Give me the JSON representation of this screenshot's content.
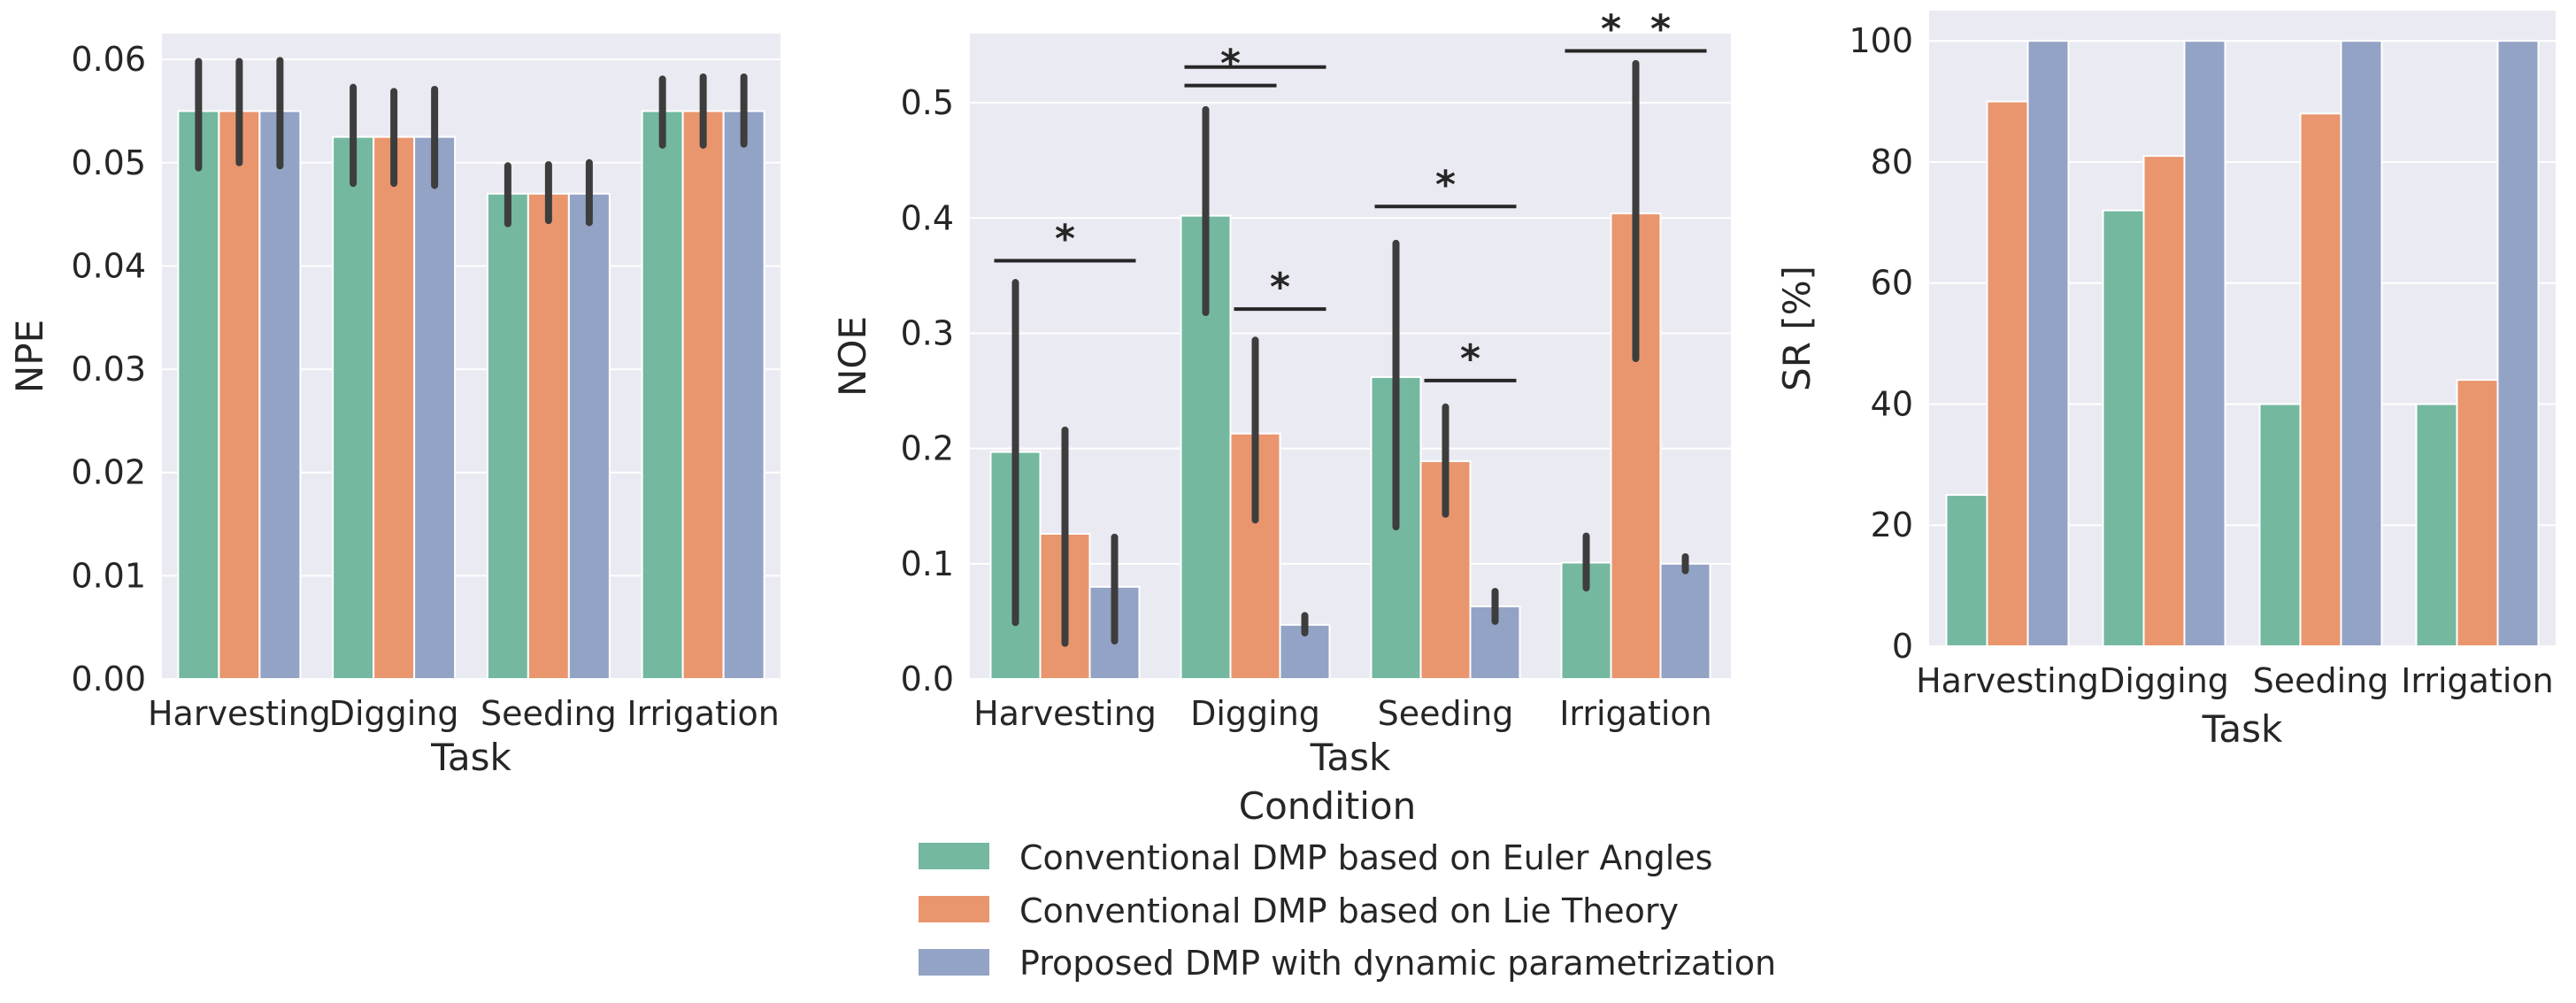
{
  "colors": {
    "plot_bg": "#eaeaf2",
    "grid": "#ffffff",
    "errorbar": "#3d3d3d",
    "series": [
      "#74b8a0",
      "#e9966f",
      "#93a3c5"
    ]
  },
  "legend": {
    "title": "Condition",
    "entries": [
      "Conventional DMP based on Euler Angles",
      "Conventional DMP based on Lie Theory",
      "Proposed DMP with dynamic parametrization"
    ]
  },
  "chart_data": [
    {
      "type": "bar",
      "title": "",
      "xlabel": "Task",
      "ylabel": "NPE",
      "categories": [
        "Harvesting",
        "Digging",
        "Seeding",
        "Irrigation"
      ],
      "ylim": [
        0,
        0.0625
      ],
      "yticks": [
        0,
        0.01,
        0.02,
        0.03,
        0.04,
        0.05,
        0.06
      ],
      "ytick_labels": [
        "0.00",
        "0.01",
        "0.02",
        "0.03",
        "0.04",
        "0.05",
        "0.06"
      ],
      "grid": true,
      "series": [
        {
          "name": "Conventional DMP based on Euler Angles",
          "values": [
            0.055,
            0.0525,
            0.047,
            0.055
          ],
          "err_low": [
            0.0495,
            0.048,
            0.0441,
            0.0517
          ],
          "err_high": [
            0.0598,
            0.0573,
            0.0497,
            0.0581
          ]
        },
        {
          "name": "Conventional DMP based on Lie Theory",
          "values": [
            0.055,
            0.0525,
            0.047,
            0.055
          ],
          "err_low": [
            0.05,
            0.048,
            0.0444,
            0.0517
          ],
          "err_high": [
            0.0598,
            0.0569,
            0.0498,
            0.0583
          ]
        },
        {
          "name": "Proposed DMP with dynamic parametrization",
          "values": [
            0.055,
            0.0525,
            0.047,
            0.055
          ],
          "err_low": [
            0.0497,
            0.0478,
            0.0442,
            0.0518
          ],
          "err_high": [
            0.0599,
            0.0571,
            0.05,
            0.0583
          ]
        }
      ],
      "annotations": []
    },
    {
      "type": "bar",
      "title": "",
      "xlabel": "Task",
      "ylabel": "NOE",
      "categories": [
        "Harvesting",
        "Digging",
        "Seeding",
        "Irrigation"
      ],
      "ylim": [
        0,
        0.56
      ],
      "yticks": [
        0,
        0.1,
        0.2,
        0.3,
        0.4,
        0.5
      ],
      "ytick_labels": [
        "0.0",
        "0.1",
        "0.2",
        "0.3",
        "0.4",
        "0.5"
      ],
      "grid": true,
      "series": [
        {
          "name": "Conventional DMP based on Euler Angles",
          "values": [
            0.197,
            0.402,
            0.262,
            0.101
          ],
          "err_low": [
            0.049,
            0.318,
            0.132,
            0.079
          ],
          "err_high": [
            0.344,
            0.494,
            0.378,
            0.124
          ]
        },
        {
          "name": "Conventional DMP based on Lie Theory",
          "values": [
            0.126,
            0.213,
            0.189,
            0.404
          ],
          "err_low": [
            0.031,
            0.138,
            0.143,
            0.278
          ],
          "err_high": [
            0.216,
            0.294,
            0.236,
            0.534
          ]
        },
        {
          "name": "Proposed DMP with dynamic parametrization",
          "values": [
            0.08,
            0.047,
            0.063,
            0.1
          ],
          "err_low": [
            0.033,
            0.04,
            0.05,
            0.094
          ],
          "err_high": [
            0.123,
            0.055,
            0.076,
            0.106
          ]
        }
      ],
      "annotations": [
        {
          "category": 0,
          "from_series": 0,
          "to_series": 2,
          "y": 0.363,
          "label": "*"
        },
        {
          "category": 1,
          "from_series": 0,
          "to_series": 1,
          "y": 0.515,
          "label": "*"
        },
        {
          "category": 1,
          "from_series": 0,
          "to_series": 2,
          "y": 0.531,
          "label": "*",
          "label_visible": false
        },
        {
          "category": 1,
          "from_series": 1,
          "to_series": 2,
          "y": 0.321,
          "label": "*"
        },
        {
          "category": 2,
          "from_series": 0,
          "to_series": 2,
          "y": 0.41,
          "label": "*"
        },
        {
          "category": 2,
          "from_series": 1,
          "to_series": 2,
          "y": 0.259,
          "label": "*"
        },
        {
          "category": 3,
          "from_series": 0,
          "to_series": 1,
          "y": 0.545,
          "label": "*"
        },
        {
          "category": 3,
          "from_series": 1,
          "to_series": 2,
          "y": 0.545,
          "label": "*"
        }
      ]
    },
    {
      "type": "bar",
      "title": "",
      "xlabel": "Task",
      "ylabel": "SR [%]",
      "categories": [
        "Harvesting",
        "Digging",
        "Seeding",
        "Irrigation"
      ],
      "ylim": [
        0,
        105
      ],
      "yticks": [
        0,
        20,
        40,
        60,
        80,
        100
      ],
      "ytick_labels": [
        "0",
        "20",
        "40",
        "60",
        "80",
        "100"
      ],
      "grid": true,
      "series": [
        {
          "name": "Conventional DMP based on Euler Angles",
          "values": [
            25,
            72,
            40,
            40
          ]
        },
        {
          "name": "Conventional DMP based on Lie Theory",
          "values": [
            90,
            81,
            88,
            44
          ]
        },
        {
          "name": "Proposed DMP with dynamic parametrization",
          "values": [
            100,
            100,
            100,
            100
          ]
        }
      ],
      "annotations": []
    }
  ]
}
